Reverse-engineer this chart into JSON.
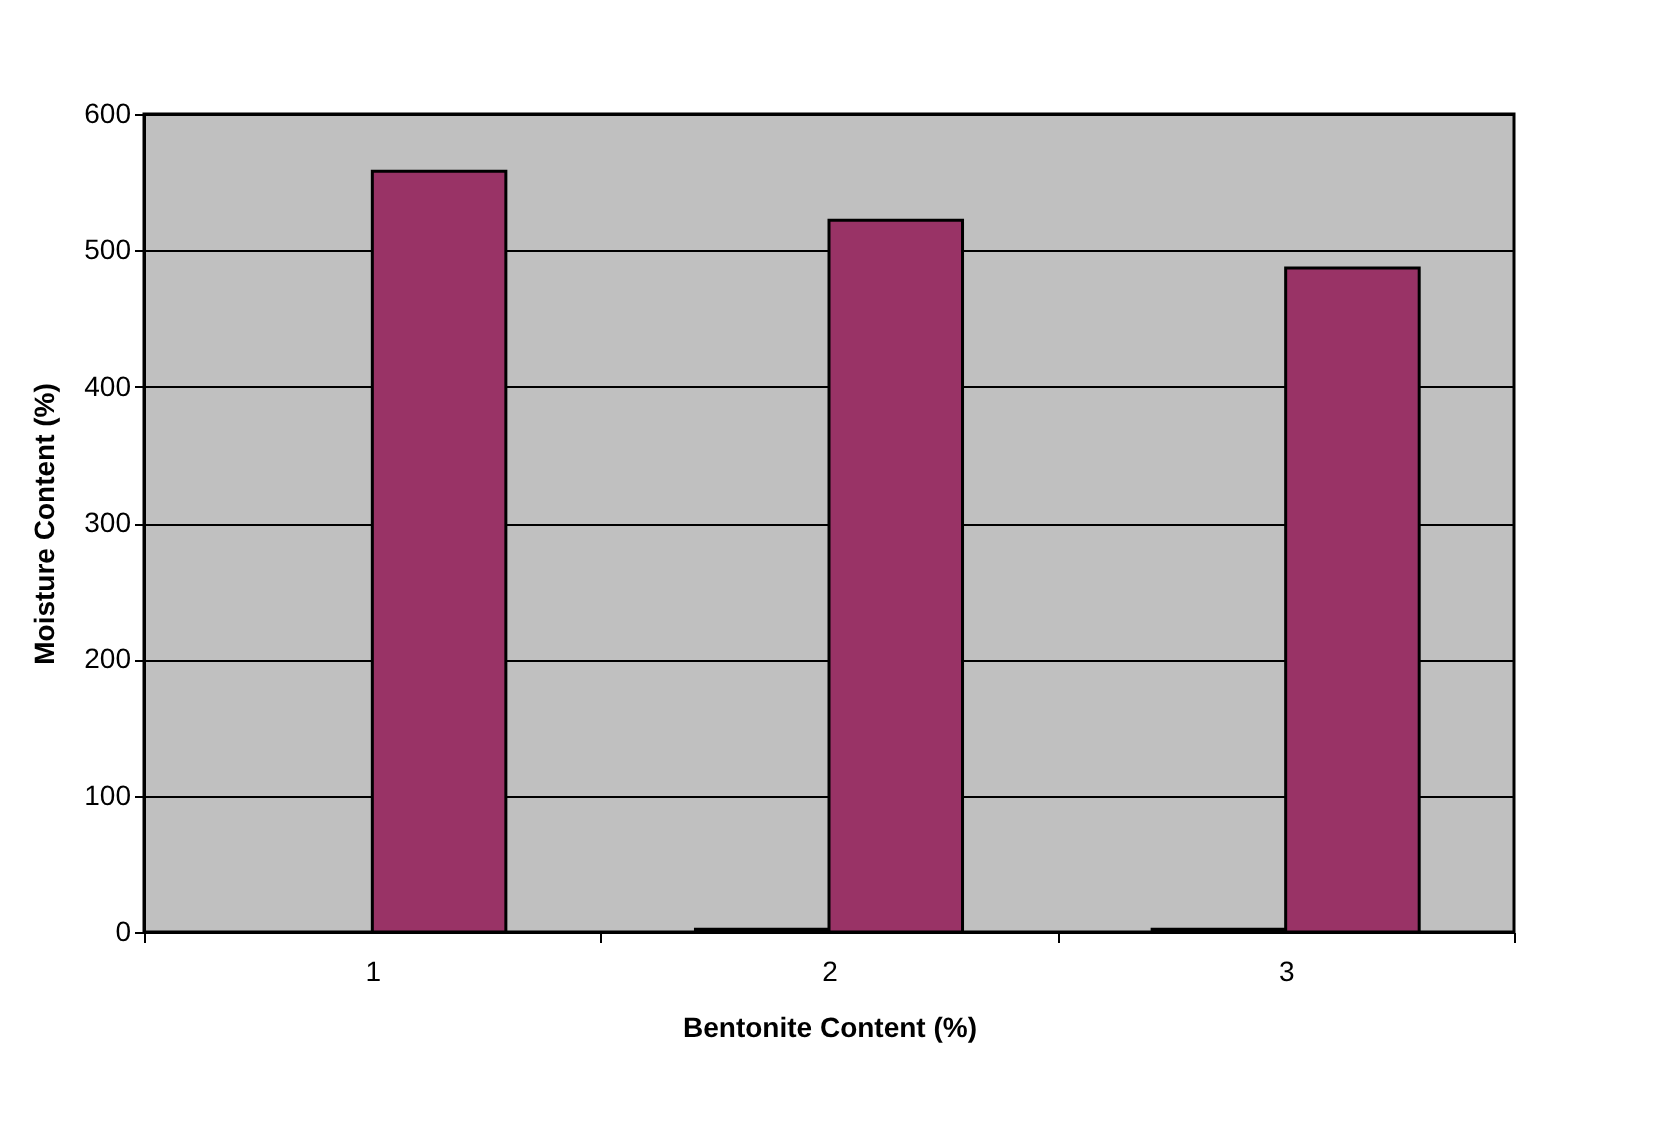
{
  "chart_data": {
    "type": "bar",
    "xlabel": "Bentonite Content (%)",
    "ylabel": "Moisture Content (%)",
    "categories": [
      "1",
      "2",
      "3"
    ],
    "series": [
      {
        "color": "#000000",
        "values": [
          null,
          2,
          2
        ]
      },
      {
        "color": "#993366",
        "values": [
          558,
          522,
          487
        ]
      }
    ],
    "ylim": [
      0,
      600
    ],
    "yticks": [
      0,
      100,
      200,
      300,
      400,
      500,
      600
    ],
    "grid": "y",
    "legend": false
  }
}
